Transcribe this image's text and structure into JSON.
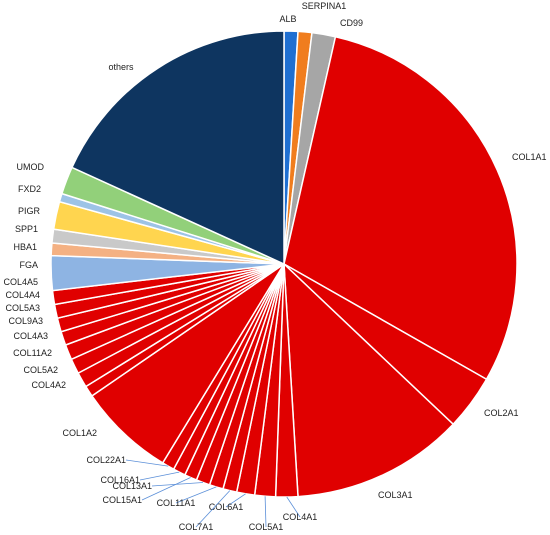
{
  "chart_data": {
    "type": "pie",
    "title": "",
    "unit": "",
    "slices": [
      {
        "label": "ALB",
        "value": 1.0,
        "color": "#1f6fd1"
      },
      {
        "label": "SERPINA1",
        "value": 1.0,
        "color": "#f07d1e"
      },
      {
        "label": "CD99",
        "value": 1.7,
        "color": "#a6a6a6"
      },
      {
        "label": "COL1A1",
        "value": 31.0,
        "color": "#e00000"
      },
      {
        "label": "COL2A1",
        "value": 4.0,
        "color": "#e00000"
      },
      {
        "label": "COL3A1",
        "value": 12.5,
        "color": "#e00000"
      },
      {
        "label": "COL4A1",
        "value": 1.6,
        "color": "#e00000"
      },
      {
        "label": "COL5A1",
        "value": 1.5,
        "color": "#e00000"
      },
      {
        "label": "COL6A1",
        "value": 1.3,
        "color": "#e00000"
      },
      {
        "label": "COL7A1",
        "value": 1.0,
        "color": "#e00000"
      },
      {
        "label": "COL11A1",
        "value": 1.0,
        "color": "#e00000"
      },
      {
        "label": "COL13A1",
        "value": 1.0,
        "color": "#e00000"
      },
      {
        "label": "COL15A1",
        "value": 0.9,
        "color": "#e00000"
      },
      {
        "label": "COL16A1",
        "value": 0.9,
        "color": "#e00000"
      },
      {
        "label": "COL22A1",
        "value": 0.9,
        "color": "#e00000"
      },
      {
        "label": "COL1A2",
        "value": 7.0,
        "color": "#e00000"
      },
      {
        "label": "COL4A2",
        "value": 0.8,
        "color": "#e00000"
      },
      {
        "label": "COL5A2",
        "value": 1.1,
        "color": "#e00000"
      },
      {
        "label": "COL11A2",
        "value": 1.1,
        "color": "#e00000"
      },
      {
        "label": "COL4A3",
        "value": 1.1,
        "color": "#e00000"
      },
      {
        "label": "COL9A3",
        "value": 1.0,
        "color": "#e00000"
      },
      {
        "label": "COL5A3",
        "value": 1.0,
        "color": "#e00000"
      },
      {
        "label": "COL4A4",
        "value": 1.0,
        "color": "#e00000"
      },
      {
        "label": "COL4A5",
        "value": 1.0,
        "color": "#e00000"
      },
      {
        "label": "FGA",
        "value": 2.5,
        "color": "#8eb4e3"
      },
      {
        "label": "HBA1",
        "value": 0.9,
        "color": "#f4b183"
      },
      {
        "label": "SPP1",
        "value": 1.0,
        "color": "#c9c9c9"
      },
      {
        "label": "PIGR",
        "value": 2.0,
        "color": "#ffd54f"
      },
      {
        "label": "FXD2",
        "value": 0.6,
        "color": "#9dc3e6"
      },
      {
        "label": "UMOD",
        "value": 2.0,
        "color": "#92d07a"
      },
      {
        "label": "others",
        "value": 19.0,
        "color": "#0e3560"
      }
    ]
  }
}
